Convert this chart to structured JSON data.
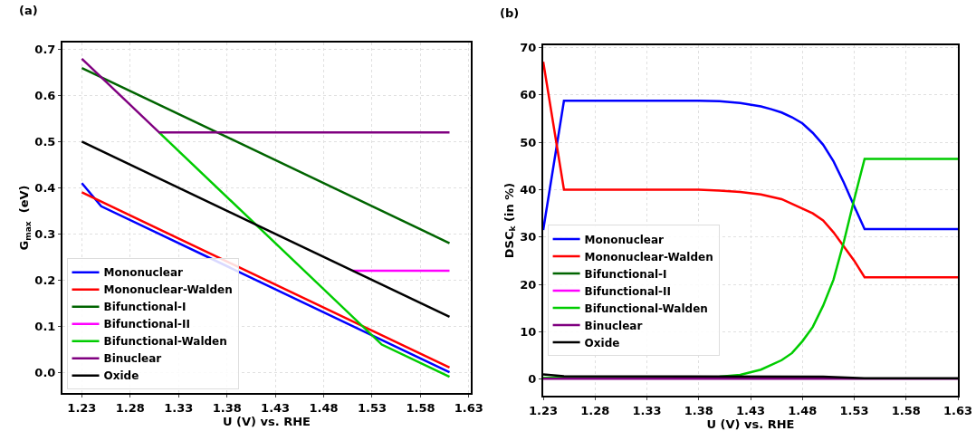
{
  "chart_data": [
    {
      "type": "line",
      "annotations": [
        "(a)"
      ],
      "xlabel": "U (V) vs. RHE",
      "ylabel": "G$_{max}$  (eV)",
      "xlim": [
        1.21,
        1.632
      ],
      "ylim": [
        -0.045,
        0.715
      ],
      "xticks": [
        1.23,
        1.28,
        1.33,
        1.38,
        1.43,
        1.48,
        1.53,
        1.58,
        1.63
      ],
      "yticks": [
        {
          "value": 0,
          "label": "0.0"
        },
        0.1,
        0.2,
        0.3,
        0.4,
        0.5,
        0.6,
        0.7
      ],
      "grid": true,
      "legend": "bottom left",
      "marker": "none",
      "line_style": "solid",
      "series": [
        {
          "name": "Mononuclear",
          "color": "#0000ff",
          "x": [
            1.23,
            1.25,
            1.61
          ],
          "values": [
            0.41,
            0.36,
            0.0
          ]
        },
        {
          "name": "Mononuclear-Walden",
          "color": "#ff0000",
          "x": [
            1.23,
            1.61
          ],
          "values": [
            0.39,
            0.01
          ]
        },
        {
          "name": "Bifunctional-I",
          "color": "#006400",
          "x": [
            1.23,
            1.61
          ],
          "values": [
            0.66,
            0.28
          ]
        },
        {
          "name": "Bifunctional-II",
          "color": "#ff00ff",
          "x": [
            1.51,
            1.61
          ],
          "values": [
            0.22,
            0.22
          ]
        },
        {
          "name": "Bifunctional-Walden",
          "color": "#00cc00",
          "x": [
            1.31,
            1.54,
            1.61
          ],
          "values": [
            0.52,
            0.06,
            -0.01
          ]
        },
        {
          "name": "Binuclear",
          "color": "#800080",
          "x": [
            1.23,
            1.31,
            1.61
          ],
          "values": [
            0.68,
            0.52,
            0.52
          ]
        },
        {
          "name": "Oxide",
          "color": "#000000",
          "x": [
            1.23,
            1.61
          ],
          "values": [
            0.5,
            0.12
          ]
        }
      ]
    },
    {
      "type": "line",
      "annotations": [
        "(b)"
      ],
      "xlabel": "U (V) vs. RHE",
      "ylabel": "DSC$_{k}$ (in %)",
      "xlim": [
        1.23,
        1.63
      ],
      "ylim": [
        -3.5,
        70.5
      ],
      "xticks": [
        1.23,
        1.28,
        1.33,
        1.38,
        1.43,
        1.48,
        1.53,
        1.58,
        1.63
      ],
      "yticks": [
        0,
        10,
        20,
        30,
        40,
        50,
        60,
        70
      ],
      "grid": true,
      "legend": "left",
      "marker": "none",
      "line_style": "solid",
      "series": [
        {
          "name": "Mononuclear",
          "color": "#0000ff",
          "x": [
            1.23,
            1.25,
            1.38,
            1.4,
            1.42,
            1.44,
            1.45,
            1.46,
            1.47,
            1.48,
            1.49,
            1.5,
            1.51,
            1.52,
            1.53,
            1.54,
            1.63
          ],
          "values": [
            31.5,
            58.8,
            58.8,
            58.7,
            58.3,
            57.6,
            57,
            56.3,
            55.3,
            54,
            52,
            49.5,
            46,
            41.5,
            36.5,
            31.7,
            31.7
          ]
        },
        {
          "name": "Mononuclear-Walden",
          "color": "#ff0000",
          "x": [
            1.23,
            1.25,
            1.38,
            1.4,
            1.42,
            1.44,
            1.46,
            1.48,
            1.49,
            1.5,
            1.51,
            1.52,
            1.53,
            1.54,
            1.63
          ],
          "values": [
            67,
            40,
            40,
            39.8,
            39.5,
            39,
            38,
            36,
            35,
            33.5,
            31,
            28,
            25,
            21.5,
            21.5
          ]
        },
        {
          "name": "Bifunctional-I",
          "color": "#006400"
        },
        {
          "name": "Bifunctional-II",
          "color": "#ff00ff"
        },
        {
          "name": "Bifunctional-Walden",
          "color": "#00cc00",
          "x": [
            1.23,
            1.38,
            1.4,
            1.42,
            1.44,
            1.46,
            1.47,
            1.48,
            1.49,
            1.5,
            1.51,
            1.52,
            1.53,
            1.54,
            1.63
          ],
          "values": [
            0.3,
            0.3,
            0.5,
            0.9,
            2,
            4,
            5.5,
            8,
            11,
            15.5,
            21,
            29,
            38,
            46.5,
            46.5
          ]
        },
        {
          "name": "Binuclear",
          "color": "#800080",
          "x": [
            1.23,
            1.63
          ],
          "values": [
            0.1,
            0.1
          ]
        },
        {
          "name": "Oxide",
          "color": "#000000",
          "x": [
            1.23,
            1.25,
            1.5,
            1.54,
            1.63
          ],
          "values": [
            1,
            0.6,
            0.5,
            0.2,
            0.2
          ]
        }
      ]
    }
  ]
}
